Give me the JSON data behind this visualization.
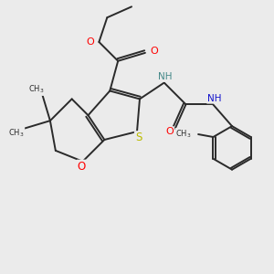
{
  "bg_color": "#ebebeb",
  "bond_color": "#2a2a2a",
  "bond_width": 1.4,
  "atom_colors": {
    "O": "#ff0000",
    "S": "#bbbb00",
    "N_teal": "#448888",
    "N_blue": "#1111cc",
    "C": "#2a2a2a"
  },
  "figsize": [
    3.0,
    3.0
  ],
  "dpi": 100
}
